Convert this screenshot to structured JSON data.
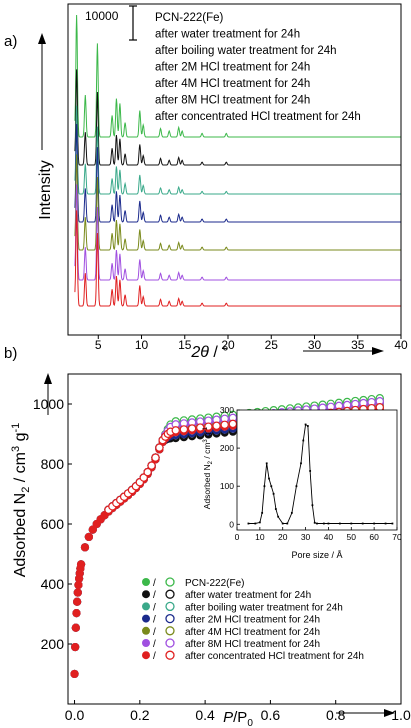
{
  "chart_data": [
    {
      "type": "line",
      "panel_label": "a)",
      "xlabel": "2θ / °",
      "ylabel": "Intensity",
      "xlim": [
        1.5,
        40
      ],
      "xticks": [
        5,
        10,
        15,
        20,
        25,
        30,
        35,
        40
      ],
      "scale_bar_label": "10000",
      "legend_position": "top-right",
      "legend": [
        {
          "label": "PCN-222(Fe)",
          "color": "#3cb84a"
        },
        {
          "label": "after water treatment for 24h",
          "color": "#111111"
        },
        {
          "label": "after boiling water treatment for 24h",
          "color": "#3aa98a"
        },
        {
          "label": "after 2M HCl treatment for 24h",
          "color": "#1b2a8c"
        },
        {
          "label": "after 4M HCl treatment for 24h",
          "color": "#7a8a1c"
        },
        {
          "label": "after 8M HCl treatment for 24h",
          "color": "#a050e0"
        },
        {
          "label": "after concentrated HCl treatment for 24h",
          "color": "#e02020"
        }
      ],
      "peaks_2theta": [
        2.5,
        3.5,
        4.9,
        6.6,
        7.1,
        7.5,
        8.1,
        9.8,
        10.2,
        12.2,
        13.2,
        14.3,
        14.7,
        17.0,
        19.8
      ]
    },
    {
      "type": "scatter",
      "panel_label": "b)",
      "xlabel": "P/P0",
      "ylabel": "Adsorbed N2 / cm3 g-1",
      "xlim": [
        -0.02,
        1.0
      ],
      "ylim": [
        0,
        1100
      ],
      "xticks": [
        0.0,
        0.2,
        0.4,
        0.6,
        0.8,
        1.0
      ],
      "yticks": [
        200,
        400,
        600,
        800,
        1000
      ],
      "legend_position": "bottom-left",
      "legend_sep": "/",
      "series": [
        {
          "name": "PCN-222(Fe)",
          "color": "#3cb84a",
          "plateau": 1015
        },
        {
          "name": "after water treatment for 24h",
          "color": "#111111",
          "plateau": 965
        },
        {
          "name": "after boiling water treatment for 24h",
          "color": "#3aa98a",
          "plateau": 990
        },
        {
          "name": "after 2M HCl treatment for 24h",
          "color": "#1b2a8c",
          "plateau": 975
        },
        {
          "name": "after 4M HCl treatment for 24h",
          "color": "#7a8a1c",
          "plateau": 1000
        },
        {
          "name": "after 8M HCl treatment for 24h",
          "color": "#a050e0",
          "plateau": 1005
        },
        {
          "name": "after concentrated HCl treatment for 24h",
          "color": "#e02020",
          "plateau": 985
        }
      ],
      "inset": {
        "type": "line",
        "xlabel": "Pore size / Å",
        "ylabel": "Adsorbed N2 / cm3 g-1",
        "xlim": [
          0,
          70
        ],
        "ylim": [
          -15,
          300
        ],
        "xticks": [
          0,
          10,
          20,
          30,
          40,
          50,
          60,
          70
        ],
        "yticks": [
          0,
          100,
          200,
          300
        ],
        "x": [
          5,
          8,
          10,
          11,
          12,
          13,
          14,
          15,
          16,
          17,
          18,
          20,
          22,
          24,
          26,
          28,
          29,
          30,
          31,
          32,
          33,
          34,
          35,
          38,
          40,
          45,
          50,
          55,
          60,
          65,
          68
        ],
        "y": [
          2,
          2,
          5,
          30,
          100,
          160,
          120,
          100,
          80,
          40,
          20,
          2,
          2,
          30,
          100,
          160,
          220,
          262,
          258,
          140,
          50,
          4,
          2,
          2,
          2,
          2,
          2,
          2,
          2,
          2,
          2
        ]
      }
    }
  ]
}
